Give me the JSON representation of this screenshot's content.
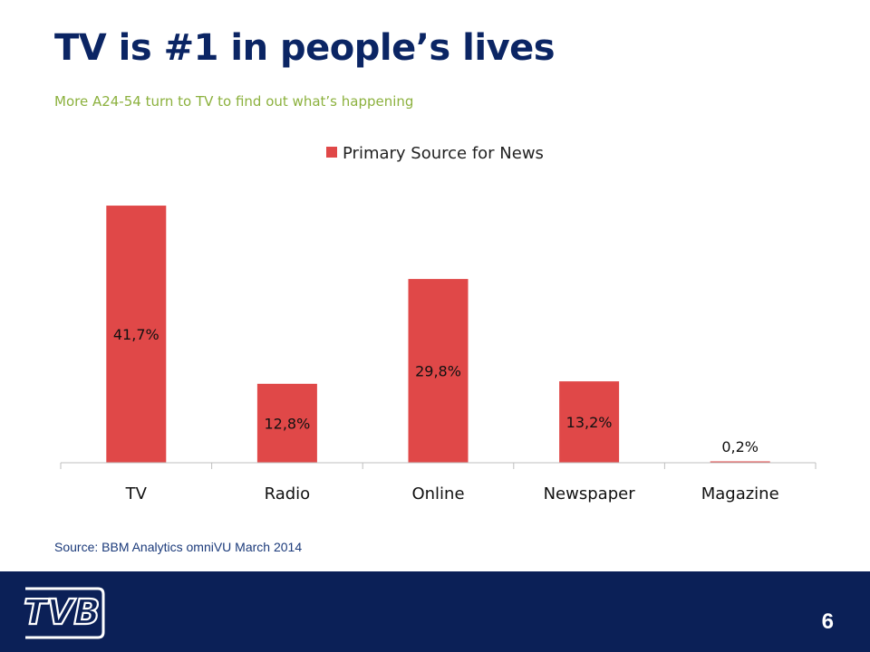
{
  "slide": {
    "title": "TV is #1 in people’s lives",
    "subtitle": "More A24-54 turn to TV to find out what’s happening",
    "source": "Source: BBM Analytics omniVU March 2014",
    "page_number": "6",
    "logo_icon": "tvb-logo-icon"
  },
  "colors": {
    "title": "#0b2564",
    "subtitle": "#8cb13e",
    "bar": "#e04848",
    "footer": "#0b2057"
  },
  "chart_data": {
    "type": "bar",
    "categories": [
      "TV",
      "Radio",
      "Online",
      "Newspaper",
      "Magazine"
    ],
    "series": [
      {
        "name": "Primary Source for News",
        "values": [
          41.7,
          12.8,
          29.8,
          13.2,
          0.2
        ],
        "labels": [
          "41,7%",
          "12,8%",
          "29,8%",
          "13,2%",
          "0,2%"
        ]
      }
    ],
    "title": "",
    "xlabel": "",
    "ylabel": "",
    "ylim": [
      0,
      42
    ],
    "grid": false,
    "legend": "top-center",
    "data_labels": "inside-middle"
  }
}
